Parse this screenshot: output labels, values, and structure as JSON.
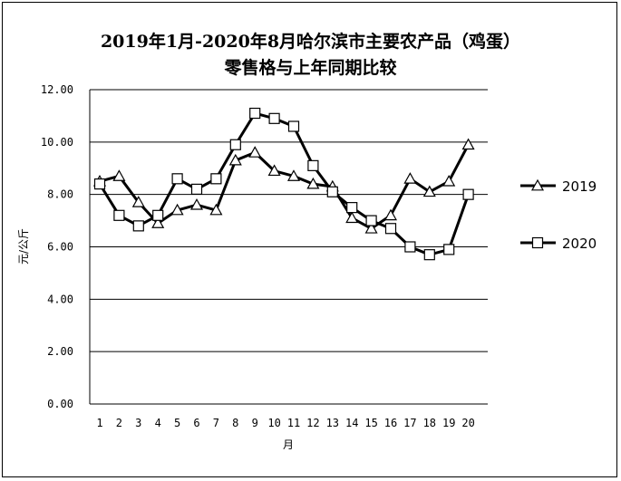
{
  "chart_data": {
    "type": "line",
    "title_line1": "2019年1月-2020年8月哈尔滨市主要农产品（鸡蛋）",
    "title_line2": "零售格与上年同期比较",
    "xlabel": "月",
    "ylabel": "元/公斤",
    "categories": [
      "1",
      "2",
      "3",
      "4",
      "5",
      "6",
      "7",
      "8",
      "9",
      "10",
      "11",
      "12",
      "13",
      "14",
      "15",
      "16",
      "17",
      "18",
      "19",
      "20"
    ],
    "ylim": [
      0,
      12
    ],
    "yticks": [
      "0.00",
      "2.00",
      "4.00",
      "6.00",
      "8.00",
      "10.00",
      "12.00"
    ],
    "grid": true,
    "legend_position": "right",
    "series": [
      {
        "name": "2019",
        "marker": "triangle",
        "values": [
          8.5,
          8.7,
          7.7,
          6.9,
          7.4,
          7.6,
          7.4,
          9.3,
          9.6,
          8.9,
          8.7,
          8.4,
          8.3,
          7.1,
          6.7,
          7.2,
          8.6,
          8.1,
          8.5,
          9.9
        ]
      },
      {
        "name": "2020",
        "marker": "square",
        "values": [
          8.4,
          7.2,
          6.8,
          7.2,
          8.6,
          8.2,
          8.6,
          9.9,
          11.1,
          10.9,
          10.6,
          9.1,
          8.1,
          7.5,
          7.0,
          6.7,
          6.0,
          5.7,
          5.9,
          8.0
        ]
      }
    ]
  }
}
